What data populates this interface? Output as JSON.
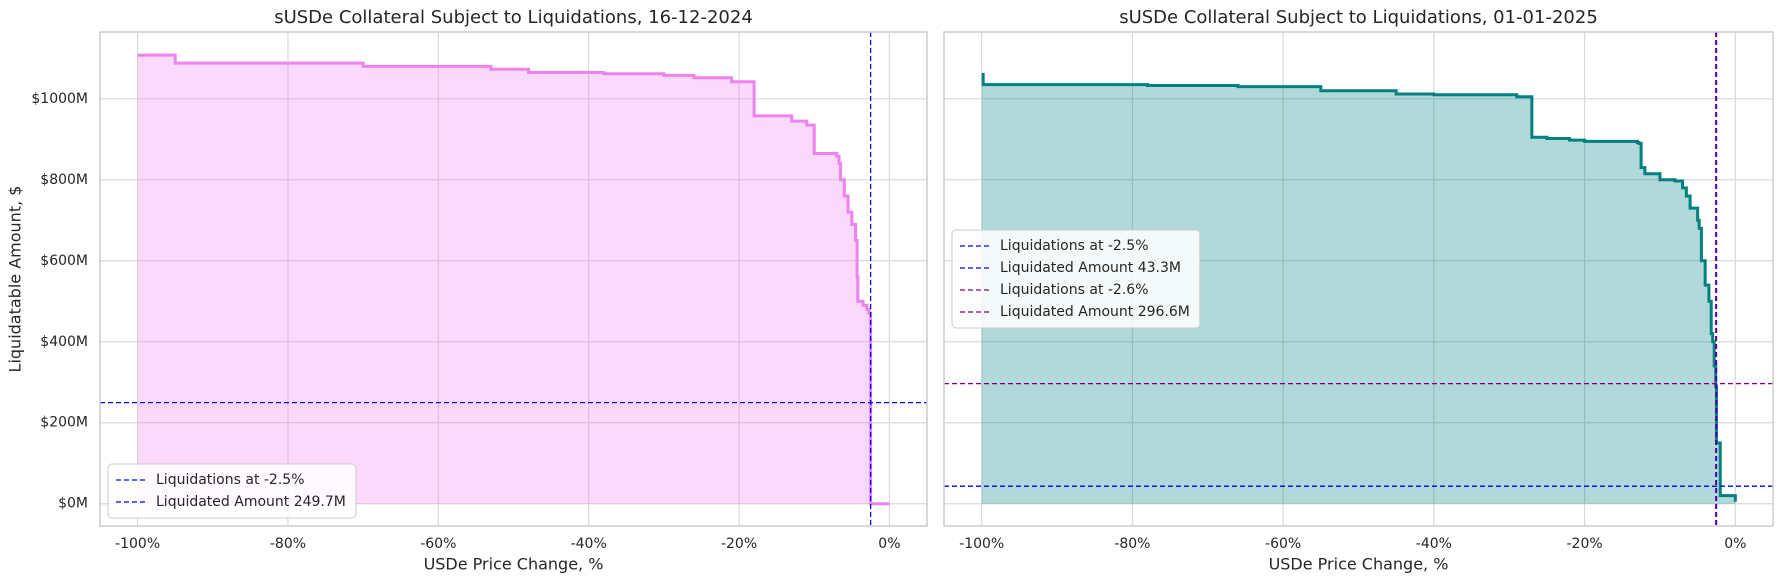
{
  "chart_data": [
    {
      "type": "step",
      "title": "sUSDe Collateral Subject to Liquidations, 16-12-2024",
      "xlabel": "USDe Price Change, %",
      "ylabel": "Liquidatable Amount, $",
      "x": [
        -100,
        -95,
        -70,
        -53,
        -48,
        -38,
        -30,
        -26,
        -21,
        -18,
        -13,
        -11,
        -10,
        -7,
        -6.7,
        -6.5,
        -6,
        -5.5,
        -5,
        -4.5,
        -4.3,
        -4.2,
        -3.5,
        -3,
        -2.7,
        -2.5,
        0
      ],
      "values": [
        1108,
        1088,
        1080,
        1073,
        1065,
        1062,
        1058,
        1052,
        1042,
        958,
        945,
        935,
        865,
        858,
        840,
        800,
        760,
        720,
        690,
        650,
        560,
        500,
        490,
        480,
        470,
        0,
        0
      ],
      "color": "#ee82ee",
      "xlim": [
        -105,
        5
      ],
      "ylim": [
        -55,
        1165
      ],
      "xticks": [
        {
          "value": -100,
          "label": "-100%"
        },
        {
          "value": -80,
          "label": "-80%"
        },
        {
          "value": -60,
          "label": "-60%"
        },
        {
          "value": -40,
          "label": "-40%"
        },
        {
          "value": -20,
          "label": "-20%"
        },
        {
          "value": 0,
          "label": "0%"
        }
      ],
      "yticks": [
        {
          "value": 0,
          "label": "$0M"
        },
        {
          "value": 200,
          "label": "$200M"
        },
        {
          "value": 400,
          "label": "$400M"
        },
        {
          "value": 600,
          "label": "$600M"
        },
        {
          "value": 800,
          "label": "$800M"
        },
        {
          "value": 1000,
          "label": "$1000M"
        }
      ],
      "grid": true,
      "legend": "lower left",
      "reference_lines": [
        {
          "label": "Liquidations at -2.5%",
          "orientation": "vertical",
          "value": -2.5,
          "color": "#0000ff"
        },
        {
          "label": "Liquidated Amount 249.7M",
          "orientation": "horizontal",
          "value": 249.7,
          "color": "#0000ff"
        }
      ]
    },
    {
      "type": "step",
      "title": "sUSDe Collateral Subject to Liquidations, 01-01-2025",
      "xlabel": "USDe Price Change, %",
      "sharey": true,
      "x": [
        -100,
        -99.8,
        -78,
        -66,
        -55,
        -45,
        -40,
        -29,
        -27,
        -25,
        -22,
        -20,
        -13,
        -12.8,
        -12.5,
        -12,
        -10,
        -8,
        -7,
        -6.5,
        -6,
        -5,
        -4.8,
        -4.5,
        -4,
        -3.5,
        -3.2,
        -3,
        -2.8,
        -2.6,
        -2.5,
        -2,
        0
      ],
      "values": [
        1060,
        1035,
        1033,
        1030,
        1020,
        1012,
        1010,
        1005,
        905,
        902,
        898,
        895,
        892,
        890,
        830,
        815,
        800,
        797,
        780,
        760,
        730,
        700,
        680,
        600,
        540,
        500,
        420,
        400,
        340,
        290,
        150,
        20,
        5
      ],
      "color": "#008080",
      "xlim": [
        -105,
        5
      ],
      "xticks": [
        {
          "value": -100,
          "label": "-100%"
        },
        {
          "value": -80,
          "label": "-80%"
        },
        {
          "value": -60,
          "label": "-60%"
        },
        {
          "value": -40,
          "label": "-40%"
        },
        {
          "value": -20,
          "label": "-20%"
        },
        {
          "value": 0,
          "label": "0%"
        }
      ],
      "grid": true,
      "legend": "center left",
      "reference_lines": [
        {
          "label": "Liquidations at -2.5%",
          "orientation": "vertical",
          "value": -2.5,
          "color": "#0000ff"
        },
        {
          "label": "Liquidated Amount 43.3M",
          "orientation": "horizontal",
          "value": 43.3,
          "color": "#0000ff"
        },
        {
          "label": "Liquidations at -2.6%",
          "orientation": "vertical",
          "value": -2.6,
          "color": "#800080"
        },
        {
          "label": "Liquidated Amount 296.6M",
          "orientation": "horizontal",
          "value": 296.6,
          "color": "#800080"
        }
      ]
    }
  ]
}
